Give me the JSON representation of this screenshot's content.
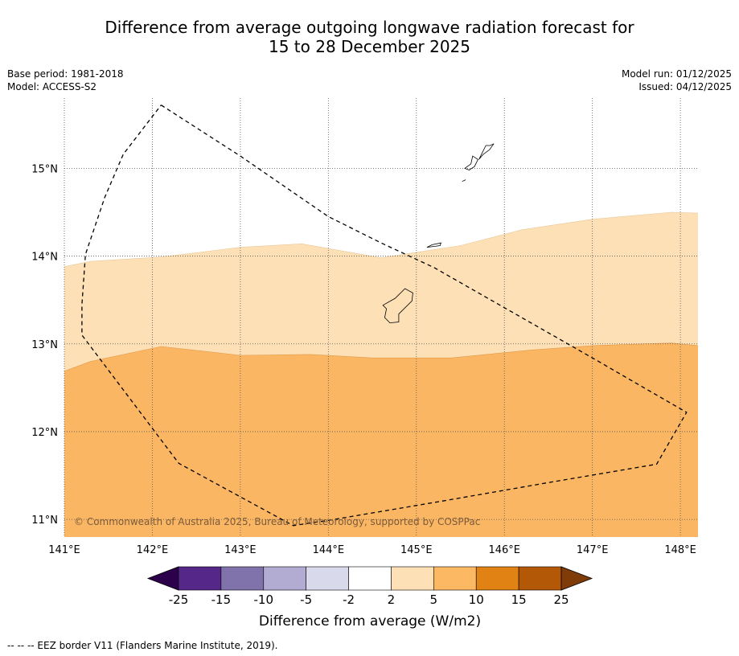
{
  "header": {
    "title_line1": "Difference from average outgoing longwave radiation forecast for",
    "title_line2": "15 to 28 December 2025"
  },
  "meta_left": {
    "base_period": "Base period: 1981-2018",
    "model": "Model: ACCESS-S2"
  },
  "meta_right": {
    "model_run": "Model run: 01/12/2025",
    "issued": "Issued: 04/12/2025"
  },
  "map": {
    "lon_range": [
      141.0,
      148.2
    ],
    "lat_range": [
      10.8,
      15.8
    ],
    "lon_ticks": [
      141,
      142,
      143,
      144,
      145,
      146,
      147,
      148
    ],
    "lon_labels": [
      "141°E",
      "142°E",
      "143°E",
      "144°E",
      "145°E",
      "146°E",
      "147°E",
      "148°E"
    ],
    "lat_ticks": [
      15,
      14,
      13,
      12,
      11
    ],
    "lat_labels": [
      "15°N",
      "14°N",
      "13°N",
      "12°N",
      "11°N"
    ],
    "copyright": "© Commonwealth of Australia 2025, Bureau of Meteorology, supported by COSPPac",
    "colors": {
      "band_2_5": "#fde0b6",
      "band_5_10": "#fbb663",
      "line": "#000000"
    },
    "contour_2": [
      [
        141.0,
        13.88
      ],
      [
        141.3,
        13.94
      ],
      [
        142.1,
        13.99
      ],
      [
        143.0,
        14.1
      ],
      [
        143.7,
        14.14
      ],
      [
        144.6,
        13.98
      ],
      [
        145.5,
        14.12
      ],
      [
        146.2,
        14.3
      ],
      [
        147.0,
        14.42
      ],
      [
        147.9,
        14.5
      ],
      [
        148.2,
        14.49
      ]
    ],
    "contour_5": [
      [
        141.0,
        12.69
      ],
      [
        141.3,
        12.8
      ],
      [
        142.1,
        12.97
      ],
      [
        143.0,
        12.87
      ],
      [
        143.8,
        12.88
      ],
      [
        144.5,
        12.84
      ],
      [
        145.4,
        12.84
      ],
      [
        146.3,
        12.93
      ],
      [
        147.0,
        12.98
      ],
      [
        147.9,
        13.01
      ],
      [
        148.2,
        12.98
      ]
    ],
    "eez": [
      [
        142.1,
        15.72
      ],
      [
        143.0,
        15.14
      ],
      [
        144.0,
        14.45
      ],
      [
        144.6,
        14.15
      ],
      [
        145.2,
        13.87
      ],
      [
        147.0,
        12.84
      ],
      [
        148.07,
        12.22
      ],
      [
        147.73,
        11.63
      ],
      [
        146.5,
        11.42
      ],
      [
        145.3,
        11.21
      ],
      [
        144.0,
        10.99
      ],
      [
        143.6,
        10.93
      ],
      [
        142.3,
        11.64
      ],
      [
        141.2,
        13.1
      ],
      [
        141.2,
        13.45
      ],
      [
        141.24,
        14.02
      ],
      [
        141.46,
        14.67
      ],
      [
        141.67,
        15.16
      ],
      [
        142.1,
        15.72
      ]
    ],
    "islands": [
      [
        [
          144.62,
          13.44
        ],
        [
          144.76,
          13.52
        ],
        [
          144.87,
          13.63
        ],
        [
          144.96,
          13.58
        ],
        [
          144.95,
          13.49
        ],
        [
          144.8,
          13.34
        ],
        [
          144.8,
          13.25
        ],
        [
          144.7,
          13.24
        ],
        [
          144.64,
          13.3
        ],
        [
          144.66,
          13.4
        ]
      ],
      [
        [
          145.6,
          14.98
        ],
        [
          145.55,
          15.0
        ],
        [
          145.62,
          15.05
        ],
        [
          145.64,
          15.14
        ],
        [
          145.7,
          15.1
        ],
        [
          145.66,
          15.02
        ]
      ],
      [
        [
          145.71,
          15.1
        ],
        [
          145.79,
          15.26
        ],
        [
          145.84,
          15.26
        ],
        [
          145.88,
          15.28
        ],
        [
          145.83,
          15.21
        ],
        [
          145.76,
          15.16
        ]
      ],
      [
        [
          145.12,
          14.1
        ],
        [
          145.18,
          14.13
        ],
        [
          145.28,
          14.15
        ],
        [
          145.27,
          14.12
        ],
        [
          145.2,
          14.11
        ]
      ],
      [
        [
          145.52,
          14.85
        ],
        [
          145.56,
          14.87
        ]
      ]
    ]
  },
  "colorbar": {
    "ticks": [
      "-25",
      "-15",
      "-10",
      "-5",
      "-2",
      "2",
      "5",
      "10",
      "15",
      "25"
    ],
    "colors": [
      "#2d004b",
      "#542788",
      "#8073ac",
      "#b2abd2",
      "#d8daeb",
      "#ffffff",
      "#fee0b6",
      "#fdb863",
      "#e08214",
      "#b35806",
      "#7f3b08"
    ],
    "label": "Difference from average (W/m2)"
  },
  "footnote": "--  --  -- EEZ border V11 (Flanders Marine Institute, 2019)."
}
